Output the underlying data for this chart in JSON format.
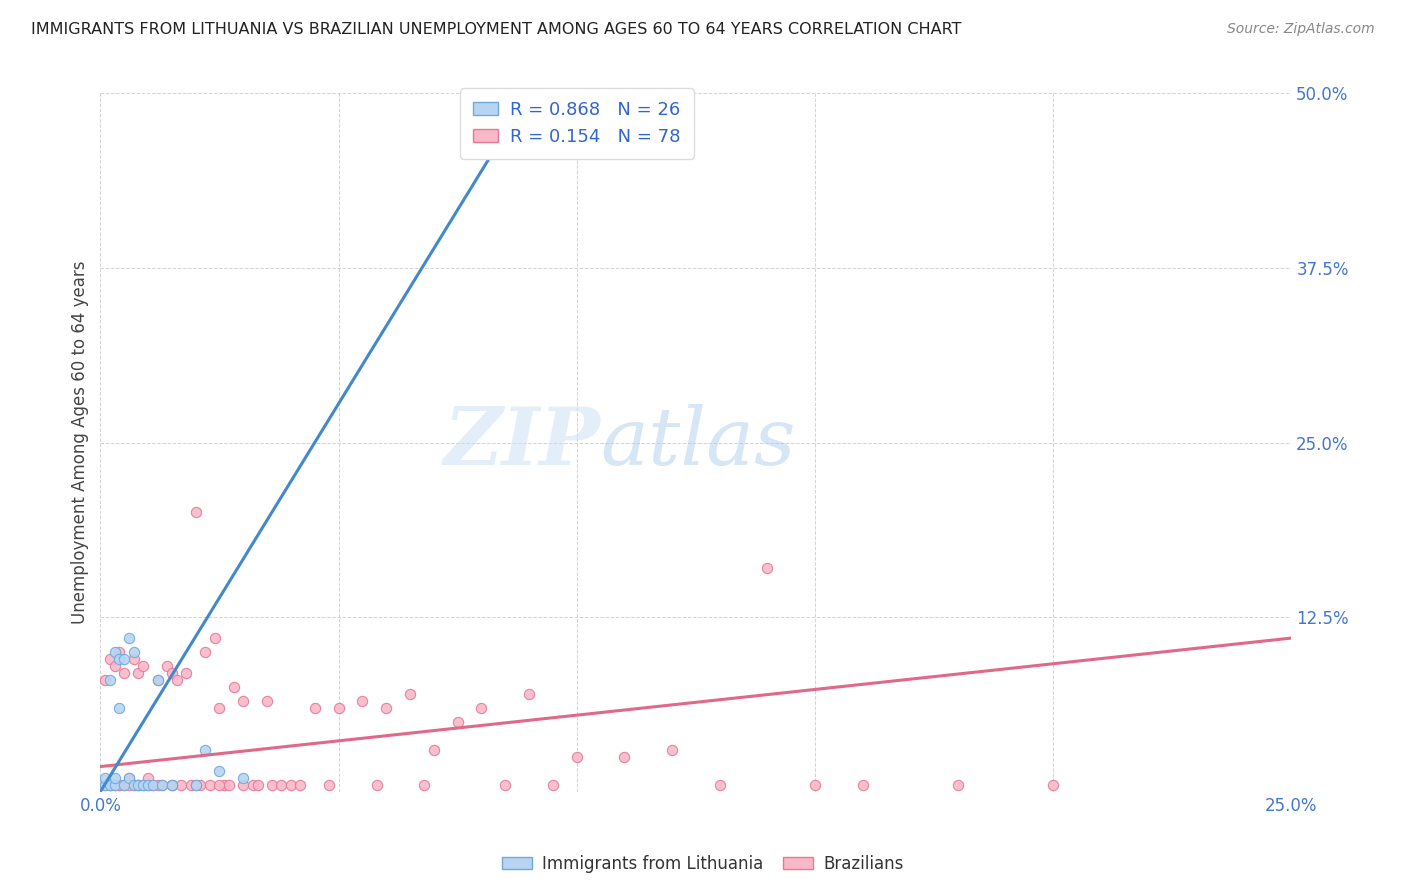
{
  "title": "IMMIGRANTS FROM LITHUANIA VS BRAZILIAN UNEMPLOYMENT AMONG AGES 60 TO 64 YEARS CORRELATION CHART",
  "source": "Source: ZipAtlas.com",
  "xlabel": "",
  "ylabel": "Unemployment Among Ages 60 to 64 years",
  "xlim": [
    0.0,
    0.25
  ],
  "ylim": [
    0.0,
    0.5
  ],
  "xticks": [
    0.0,
    0.05,
    0.1,
    0.15,
    0.2,
    0.25
  ],
  "yticks": [
    0.0,
    0.125,
    0.25,
    0.375,
    0.5
  ],
  "xtick_labels": [
    "0.0%",
    "",
    "",
    "",
    "",
    "25.0%"
  ],
  "ytick_labels": [
    "",
    "12.5%",
    "25.0%",
    "37.5%",
    "50.0%"
  ],
  "background_color": "#ffffff",
  "grid_color": "#c8c8c8",
  "watermark_zip": "ZIP",
  "watermark_atlas": "atlas",
  "series": [
    {
      "name": "Immigrants from Lithuania",
      "R": 0.868,
      "N": 26,
      "color": "#b8d4f0",
      "edge_color": "#6aaae0",
      "trend_color": "#4488cc",
      "scatter_x": [
        0.001,
        0.001,
        0.002,
        0.002,
        0.003,
        0.003,
        0.003,
        0.004,
        0.004,
        0.005,
        0.005,
        0.006,
        0.006,
        0.007,
        0.007,
        0.008,
        0.009,
        0.01,
        0.011,
        0.012,
        0.013,
        0.015,
        0.02,
        0.022,
        0.025,
        0.03
      ],
      "scatter_y": [
        0.005,
        0.01,
        0.005,
        0.08,
        0.005,
        0.01,
        0.1,
        0.095,
        0.06,
        0.005,
        0.095,
        0.01,
        0.11,
        0.005,
        0.1,
        0.005,
        0.005,
        0.005,
        0.005,
        0.08,
        0.005,
        0.005,
        0.005,
        0.03,
        0.015,
        0.01
      ],
      "trend_x": [
        0.0,
        0.09
      ],
      "trend_y": [
        0.0,
        0.5
      ]
    },
    {
      "name": "Brazilians",
      "R": 0.154,
      "N": 78,
      "color": "#f8b8c8",
      "edge_color": "#e87898",
      "trend_color": "#e06888",
      "scatter_x": [
        0.001,
        0.001,
        0.002,
        0.002,
        0.003,
        0.003,
        0.004,
        0.004,
        0.005,
        0.005,
        0.006,
        0.007,
        0.007,
        0.008,
        0.008,
        0.009,
        0.009,
        0.01,
        0.01,
        0.011,
        0.012,
        0.013,
        0.014,
        0.015,
        0.015,
        0.016,
        0.017,
        0.018,
        0.019,
        0.02,
        0.021,
        0.022,
        0.023,
        0.024,
        0.025,
        0.026,
        0.027,
        0.028,
        0.03,
        0.03,
        0.032,
        0.033,
        0.035,
        0.036,
        0.038,
        0.04,
        0.042,
        0.045,
        0.048,
        0.05,
        0.055,
        0.058,
        0.06,
        0.065,
        0.068,
        0.07,
        0.075,
        0.08,
        0.085,
        0.09,
        0.095,
        0.1,
        0.11,
        0.12,
        0.13,
        0.14,
        0.15,
        0.16,
        0.18,
        0.2,
        0.002,
        0.004,
        0.006,
        0.008,
        0.012,
        0.015,
        0.02,
        0.025
      ],
      "scatter_y": [
        0.005,
        0.08,
        0.005,
        0.095,
        0.005,
        0.09,
        0.005,
        0.1,
        0.005,
        0.085,
        0.01,
        0.005,
        0.095,
        0.005,
        0.085,
        0.005,
        0.09,
        0.005,
        0.01,
        0.005,
        0.08,
        0.005,
        0.09,
        0.005,
        0.085,
        0.08,
        0.005,
        0.085,
        0.005,
        0.2,
        0.005,
        0.1,
        0.005,
        0.11,
        0.06,
        0.005,
        0.005,
        0.075,
        0.005,
        0.065,
        0.005,
        0.005,
        0.065,
        0.005,
        0.005,
        0.005,
        0.005,
        0.06,
        0.005,
        0.06,
        0.065,
        0.005,
        0.06,
        0.07,
        0.005,
        0.03,
        0.05,
        0.06,
        0.005,
        0.07,
        0.005,
        0.025,
        0.025,
        0.03,
        0.005,
        0.16,
        0.005,
        0.005,
        0.005,
        0.005,
        0.005,
        0.005,
        0.005,
        0.005,
        0.005,
        0.005,
        0.005,
        0.005
      ],
      "trend_x": [
        0.0,
        0.25
      ],
      "trend_y": [
        0.018,
        0.11
      ]
    }
  ]
}
